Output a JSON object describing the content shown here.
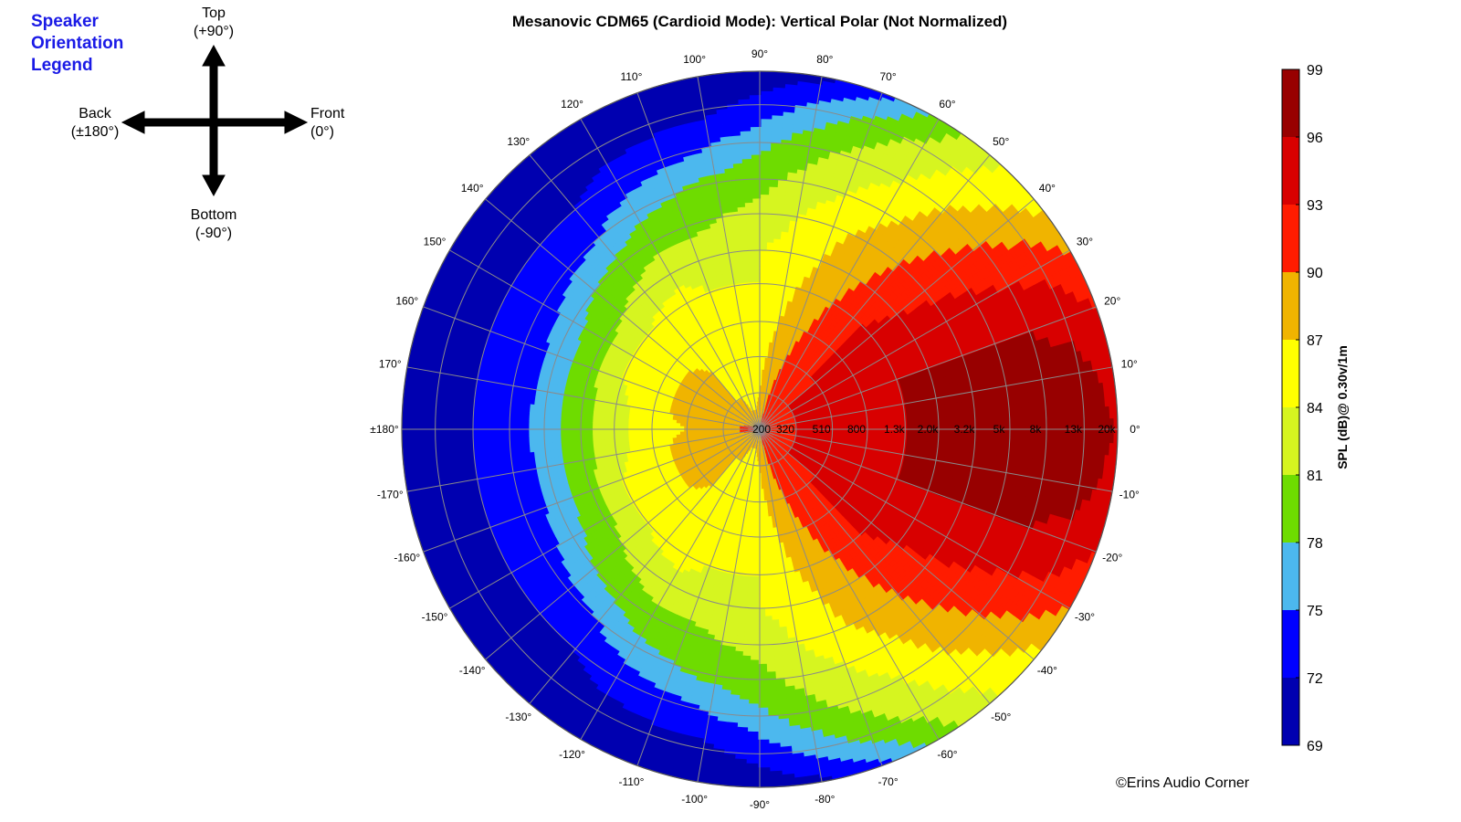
{
  "orientation_legend": {
    "title_lines": [
      "Speaker",
      "Orientation",
      "Legend"
    ],
    "top": [
      "Top",
      "(+90°)"
    ],
    "back": [
      "Back",
      "(±180°)"
    ],
    "front": [
      "Front",
      "(0°)"
    ],
    "bottom": [
      "Bottom",
      "(-90°)"
    ]
  },
  "copyright": "©Erins Audio Corner",
  "chart_data": {
    "type": "heatmap",
    "subtype": "polar",
    "title": "Mesanovic CDM65 (Cardioid Mode): Vertical Polar (Not Normalized)",
    "angle_tick_labels": [
      "0°",
      "10°",
      "20°",
      "30°",
      "40°",
      "50°",
      "60°",
      "70°",
      "80°",
      "90°",
      "100°",
      "110°",
      "120°",
      "130°",
      "140°",
      "150°",
      "160°",
      "170°",
      "±180°",
      "-170°",
      "-160°",
      "-150°",
      "-140°",
      "-130°",
      "-120°",
      "-110°",
      "-100°",
      "-90°",
      "-80°",
      "-70°",
      "-60°",
      "-50°",
      "-40°",
      "-30°",
      "-20°",
      "-10°"
    ],
    "angle_tick_values": [
      0,
      10,
      20,
      30,
      40,
      50,
      60,
      70,
      80,
      90,
      100,
      110,
      120,
      130,
      140,
      150,
      160,
      170,
      180,
      -170,
      -160,
      -150,
      -140,
      -130,
      -120,
      -110,
      -100,
      -90,
      -80,
      -70,
      -60,
      -50,
      -40,
      -30,
      -20,
      -10
    ],
    "radial_axis": {
      "quantity": "frequency (Hz)",
      "scale": "log",
      "tick_labels": [
        "200",
        "320",
        "510",
        "800",
        "1.3k",
        "2.0k",
        "3.2k",
        "5k",
        "8k",
        "13k",
        "20k"
      ],
      "tick_values": [
        200,
        320,
        510,
        800,
        1300,
        2000,
        3200,
        5000,
        8000,
        13000,
        20000
      ],
      "range": [
        200,
        20000
      ]
    },
    "grid": true,
    "colorbar": {
      "label": "SPL (dB)@ 0.30v/1m",
      "ticks": [
        99,
        96,
        93,
        90,
        87,
        84,
        81,
        78,
        75,
        72,
        69
      ],
      "range": [
        69,
        99
      ],
      "levels": [
        {
          "from": 69,
          "to": 72,
          "color": "#0000b0"
        },
        {
          "from": 72,
          "to": 75,
          "color": "#0000ff"
        },
        {
          "from": 75,
          "to": 78,
          "color": "#4cb8ee"
        },
        {
          "from": 78,
          "to": 81,
          "color": "#6edc00"
        },
        {
          "from": 81,
          "to": 84,
          "color": "#d6f520"
        },
        {
          "from": 84,
          "to": 87,
          "color": "#ffff00"
        },
        {
          "from": 87,
          "to": 90,
          "color": "#f0b400"
        },
        {
          "from": 90,
          "to": 93,
          "color": "#ff1c00"
        },
        {
          "from": 93,
          "to": 96,
          "color": "#d80000"
        },
        {
          "from": 96,
          "to": 99,
          "color": "#980000"
        }
      ]
    },
    "spl_profile_by_angle": {
      "angles": [
        0,
        10,
        20,
        30,
        40,
        50,
        60,
        70,
        80,
        90,
        100,
        110,
        120,
        130,
        140,
        150,
        160,
        170,
        180
      ],
      "frequencies": [
        200,
        320,
        510,
        800,
        1300,
        2000,
        3200,
        5000,
        8000,
        13000,
        20000
      ],
      "spl_db": [
        [
          92,
          93,
          94,
          95,
          96,
          96,
          96,
          97,
          97,
          97,
          96
        ],
        [
          92,
          93,
          94,
          95,
          96,
          96,
          96,
          97,
          97,
          97,
          95
        ],
        [
          92,
          93,
          94,
          95,
          96,
          96,
          96,
          96,
          96,
          95,
          93
        ],
        [
          92,
          93,
          94,
          94,
          95,
          95,
          95,
          94,
          93,
          92,
          90
        ],
        [
          92,
          93,
          93,
          94,
          94,
          93,
          92,
          91,
          90,
          88,
          86
        ],
        [
          92,
          92,
          93,
          92,
          92,
          91,
          90,
          89,
          87,
          85,
          83
        ],
        [
          91,
          92,
          92,
          91,
          90,
          89,
          88,
          86,
          84,
          82,
          79
        ],
        [
          91,
          91,
          90,
          89,
          88,
          87,
          86,
          84,
          82,
          79,
          74
        ],
        [
          90,
          89,
          88,
          87,
          86,
          85,
          84,
          82,
          80,
          76,
          71
        ],
        [
          89,
          87,
          86,
          85,
          84,
          84,
          82,
          80,
          77,
          73,
          70
        ],
        [
          88,
          86,
          85,
          85,
          84,
          83,
          81,
          79,
          75,
          71,
          70
        ],
        [
          88,
          86,
          85,
          85,
          84,
          83,
          80,
          78,
          74,
          71,
          70
        ],
        [
          88,
          87,
          86,
          86,
          85,
          83,
          80,
          77,
          73,
          71,
          70
        ],
        [
          88,
          87,
          87,
          86,
          85,
          82,
          79,
          75,
          72,
          71,
          70
        ],
        [
          89,
          88,
          88,
          86,
          84,
          81,
          78,
          74,
          72,
          71,
          70
        ],
        [
          89,
          88,
          88,
          86,
          84,
          80,
          77,
          73,
          72,
          71,
          70
        ],
        [
          90,
          89,
          88,
          86,
          84,
          80,
          76,
          73,
          72,
          71,
          70
        ],
        [
          91,
          89,
          88,
          86,
          83,
          80,
          76,
          73,
          72,
          71,
          70
        ],
        [
          91,
          89,
          87,
          86,
          83,
          80,
          76,
          74,
          72,
          71,
          70
        ]
      ]
    }
  }
}
